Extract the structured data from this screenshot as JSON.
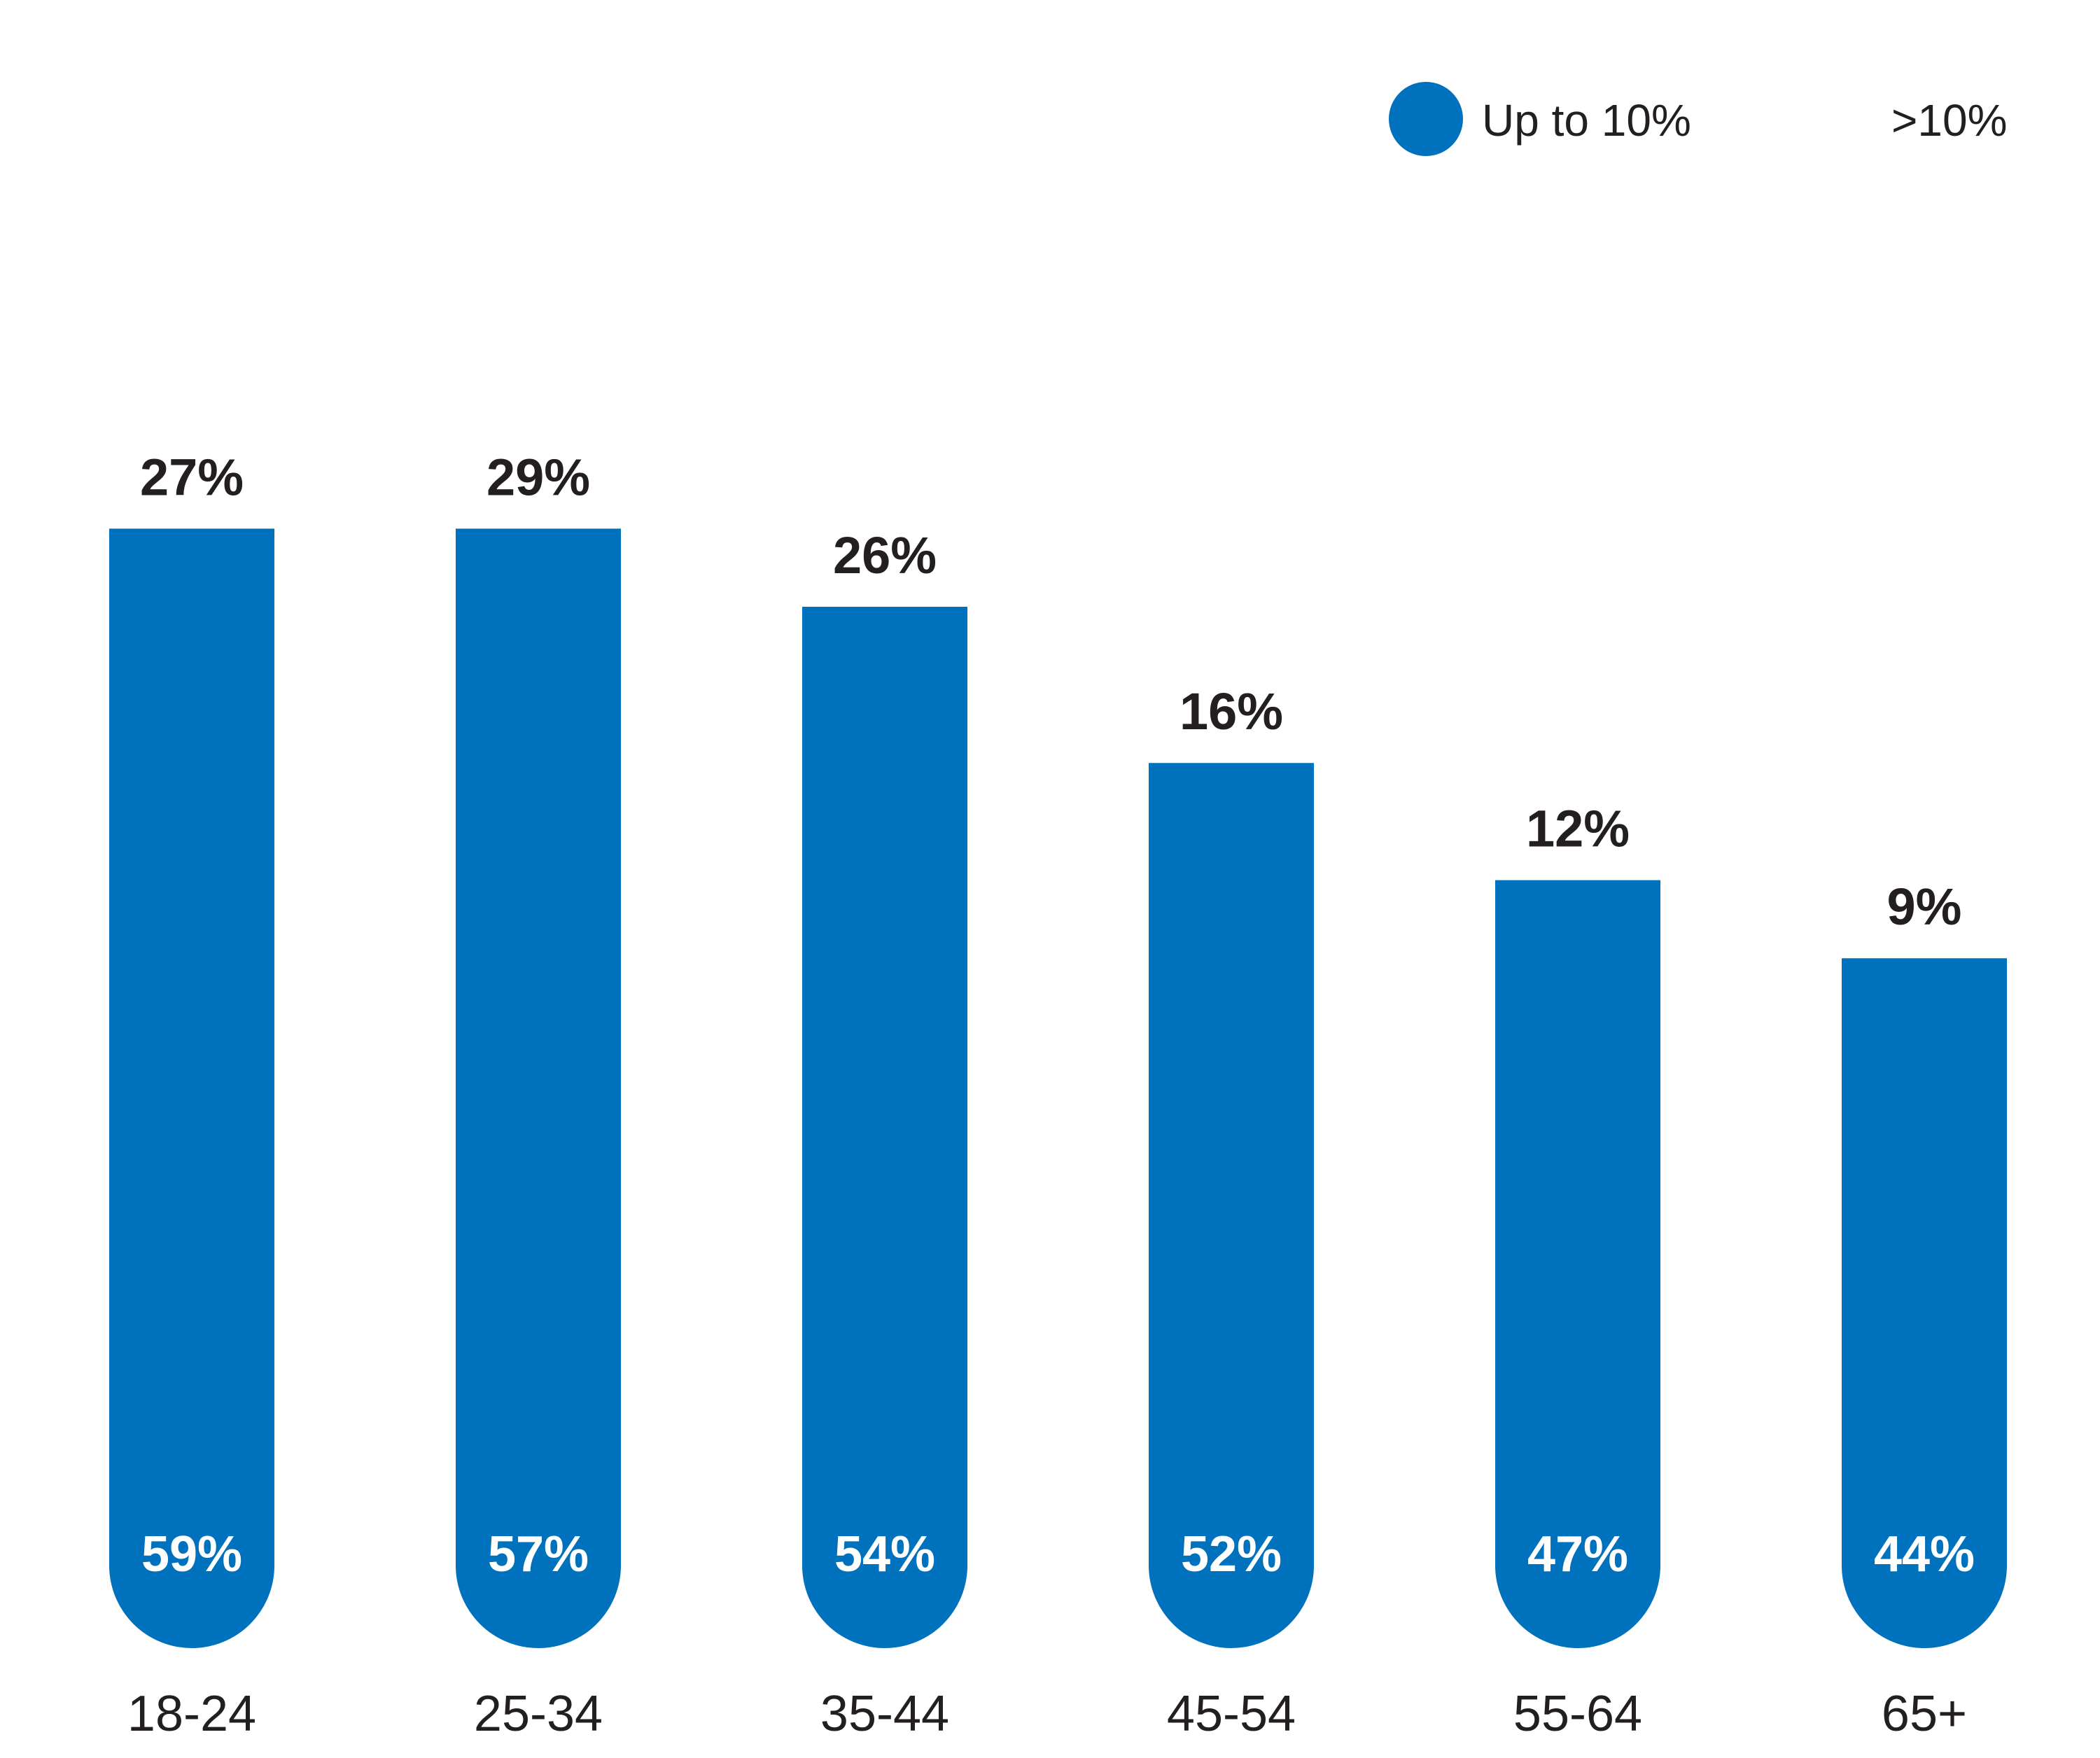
{
  "colors": {
    "bar": "#0071bc",
    "text": "#231f20",
    "inner_label": "#ffffff"
  },
  "legend": {
    "items": [
      {
        "label": "Up to 10%",
        "color": "#0071bc",
        "has_marker": true
      },
      {
        "label": ">10%",
        "color": "#ffffff",
        "has_marker": false
      }
    ]
  },
  "chart_data": {
    "type": "bar",
    "title": "",
    "xlabel": "",
    "ylabel": "",
    "categories": [
      "18-24",
      "25-34",
      "35-44",
      "45-54",
      "55-64",
      "65+"
    ],
    "series": [
      {
        "name": "Up to 10%",
        "values": [
          59,
          57,
          54,
          52,
          47,
          44
        ],
        "labels": [
          "59%",
          "57%",
          "54%",
          "52%",
          "47%",
          "44%"
        ]
      },
      {
        "name": ">10%",
        "values": [
          27,
          29,
          26,
          16,
          12,
          9
        ],
        "labels": [
          "27%",
          "29%",
          "26%",
          "16%",
          "12%",
          "9%"
        ]
      }
    ],
    "grid": false,
    "legend_position": "top-right"
  }
}
